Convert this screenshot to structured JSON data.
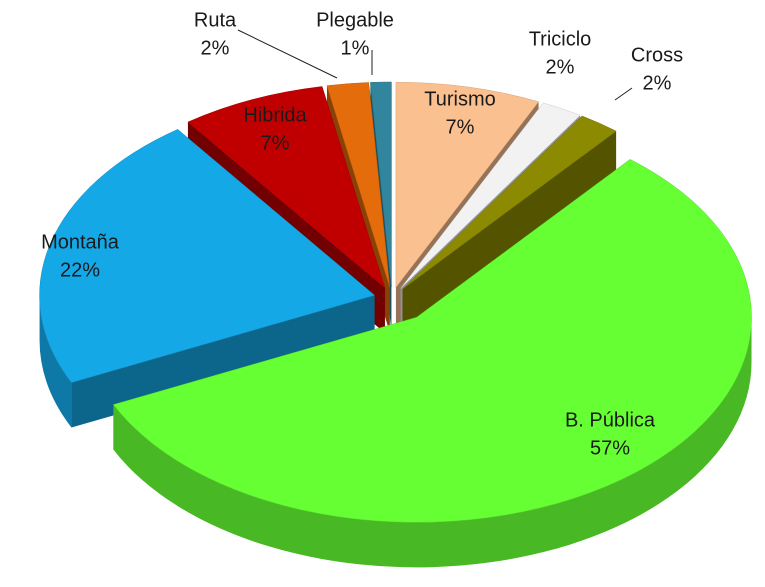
{
  "chart_data": {
    "type": "pie",
    "categories": [
      "Turismo",
      "Triciclo",
      "Cross",
      "B. Pública",
      "Montaña",
      "Hibrida",
      "Ruta",
      "Plegable"
    ],
    "values": [
      7,
      2,
      2,
      57,
      22,
      7,
      2,
      1
    ],
    "value_labels": [
      "7%",
      "2%",
      "2%",
      "57%",
      "22%",
      "7%",
      "2%",
      "1%"
    ],
    "colors": [
      "#fac090",
      "#f2f2f2",
      "#8c8a00",
      "#66ff33",
      "#14a8e6",
      "#c00000",
      "#e46c0a",
      "#31859c"
    ]
  }
}
